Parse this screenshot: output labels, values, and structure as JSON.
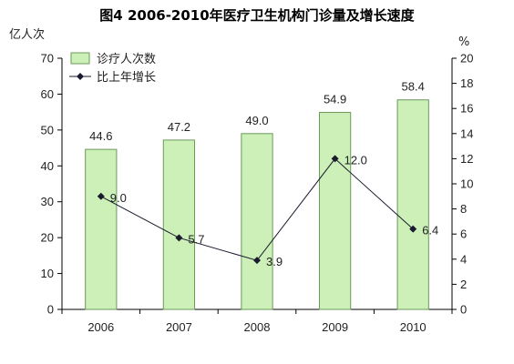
{
  "chart_data": {
    "type": "bar",
    "title": "图4    2006-2010年医疗卫生机构门诊量及增长速度",
    "categories": [
      "2006",
      "2007",
      "2008",
      "2009",
      "2010"
    ],
    "series": [
      {
        "name": "诊疗人次数",
        "type": "bar",
        "axis": "left",
        "values": [
          44.6,
          47.2,
          49.0,
          54.9,
          58.4
        ],
        "labels": [
          "44.6",
          "47.2",
          "49.0",
          "54.9",
          "58.4"
        ]
      },
      {
        "name": "比上年增长",
        "type": "line",
        "axis": "right",
        "values": [
          9.0,
          5.7,
          3.9,
          12.0,
          6.4
        ],
        "labels": [
          "9.0",
          "5.7",
          "3.9",
          "12.0",
          "6.4"
        ]
      }
    ],
    "ylabel": "亿人次",
    "ylabel_right": "%",
    "ylim": [
      0,
      70
    ],
    "ylim_right": [
      0,
      20
    ],
    "yticks": [
      "0",
      "10",
      "20",
      "30",
      "40",
      "50",
      "60",
      "70"
    ],
    "yticks_right": [
      "0",
      "2",
      "4",
      "6",
      "8",
      "10",
      "12",
      "14",
      "16",
      "18",
      "20"
    ],
    "legend_position": "top-left",
    "grid": false,
    "colors": {
      "bar_fill": "#ccf0b8",
      "bar_stroke": "#6a9a5a",
      "line": "#1a1a2e",
      "marker": "#1a1a2e"
    }
  }
}
